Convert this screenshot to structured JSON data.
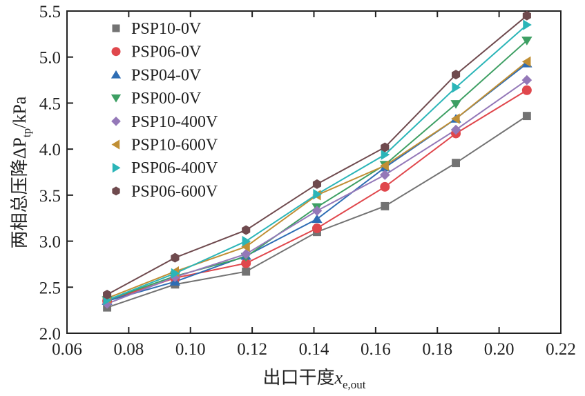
{
  "chart_data": {
    "type": "line",
    "title": "",
    "xlabel": "出口干度",
    "xlabel_symbol": "x",
    "xlabel_subscript": "e,out",
    "ylabel": "两相总压降ΔP",
    "ylabel_subscript": "tp",
    "ylabel_unit": "/kPa",
    "xlim": [
      0.06,
      0.22
    ],
    "ylim": [
      2.0,
      5.5
    ],
    "xticks": [
      0.06,
      0.08,
      0.1,
      0.12,
      0.14,
      0.16,
      0.18,
      0.2,
      0.22
    ],
    "xtick_labels": [
      "0.06",
      "0.08",
      "0.10",
      "0.12",
      "0.14",
      "0.16",
      "0.18",
      "0.20",
      "0.22"
    ],
    "yticks": [
      2.0,
      2.5,
      3.0,
      3.5,
      4.0,
      4.5,
      5.0,
      5.5
    ],
    "ytick_labels": [
      "2.0",
      "2.5",
      "3.0",
      "3.5",
      "4.0",
      "4.5",
      "5.0",
      "5.5"
    ],
    "grid": false,
    "legend_position": "top-left",
    "x": [
      0.073,
      0.095,
      0.118,
      0.141,
      0.163,
      0.186,
      0.209
    ],
    "series": [
      {
        "name": "PSP10-0V",
        "marker": "square",
        "color": "#737373",
        "values": [
          2.28,
          2.53,
          2.67,
          3.1,
          3.38,
          3.85,
          4.36
        ]
      },
      {
        "name": "PSP06-0V",
        "marker": "circle",
        "color": "#e0474c",
        "values": [
          2.35,
          2.6,
          2.76,
          3.14,
          3.59,
          4.17,
          4.64
        ]
      },
      {
        "name": "PSP04-0V",
        "marker": "triangle-up",
        "color": "#2e6db4",
        "values": [
          2.35,
          2.56,
          2.84,
          3.24,
          3.8,
          4.33,
          4.93
        ]
      },
      {
        "name": "PSP00-0V",
        "marker": "triangle-down",
        "color": "#3d9f63",
        "values": [
          2.36,
          2.62,
          2.83,
          3.37,
          3.83,
          4.49,
          5.18
        ]
      },
      {
        "name": "PSP10-400V",
        "marker": "diamond",
        "color": "#9478b8",
        "values": [
          2.32,
          2.61,
          2.86,
          3.33,
          3.72,
          4.21,
          4.75
        ]
      },
      {
        "name": "PSP10-600V",
        "marker": "triangle-left",
        "color": "#c08f35",
        "values": [
          2.38,
          2.67,
          2.94,
          3.5,
          3.82,
          4.33,
          4.95
        ]
      },
      {
        "name": "PSP06-400V",
        "marker": "triangle-right",
        "color": "#2bb5b8",
        "values": [
          2.36,
          2.65,
          3.0,
          3.51,
          3.94,
          4.67,
          5.35
        ]
      },
      {
        "name": "PSP06-600V",
        "marker": "hexagon",
        "color": "#6f4a4e",
        "values": [
          2.42,
          2.82,
          3.12,
          3.62,
          4.02,
          4.81,
          5.45
        ]
      }
    ]
  }
}
